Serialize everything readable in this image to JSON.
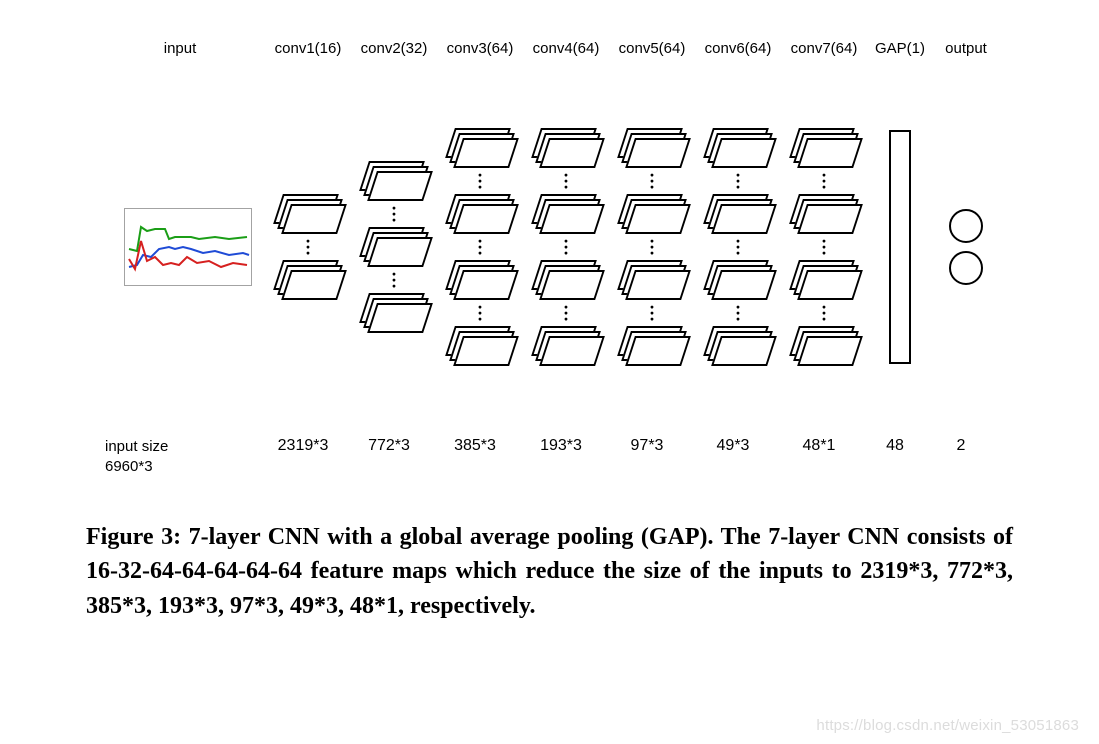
{
  "diagram": {
    "columns": [
      {
        "id": "input",
        "header": "input",
        "repr": "thumb",
        "stacks": 0,
        "size": "6960*3"
      },
      {
        "id": "conv1",
        "header": "conv1(16)",
        "repr": "fm",
        "stacks": 2,
        "size": "2319*3"
      },
      {
        "id": "conv2",
        "header": "conv2(32)",
        "repr": "fm",
        "stacks": 3,
        "size": "772*3"
      },
      {
        "id": "conv3",
        "header": "conv3(64)",
        "repr": "fm",
        "stacks": 4,
        "size": "385*3"
      },
      {
        "id": "conv4",
        "header": "conv4(64)",
        "repr": "fm",
        "stacks": 4,
        "size": "193*3"
      },
      {
        "id": "conv5",
        "header": "conv5(64)",
        "repr": "fm",
        "stacks": 4,
        "size": "97*3"
      },
      {
        "id": "conv6",
        "header": "conv6(64)",
        "repr": "fm",
        "stacks": 4,
        "size": "49*3"
      },
      {
        "id": "conv7",
        "header": "conv7(64)",
        "repr": "fm",
        "stacks": 4,
        "size": "48*1"
      },
      {
        "id": "gap",
        "header": "GAP(1)",
        "repr": "rect",
        "stacks": 0,
        "size": "48"
      },
      {
        "id": "output",
        "header": "output",
        "repr": "circles",
        "stacks": 0,
        "size": "2"
      }
    ],
    "input_size_label": "input size",
    "stack_layer_count": 3,
    "colors": {
      "stroke": "#000000",
      "background": "#ffffff",
      "thumb_border": "#a3a3a3",
      "signal_green": "#1b9e17",
      "signal_blue": "#1f4bd6",
      "signal_red": "#d6201f"
    }
  },
  "caption": {
    "label": "Figure 3:",
    "text": "7-layer CNN with a global average pooling (GAP). The 7-layer CNN consists of 16-32-64-64-64-64-64 feature maps which reduce the size of the inputs to 2319*3, 772*3, 385*3, 193*3, 97*3, 49*3, 48*1, respectively.",
    "fontsize_pt": 18
  },
  "watermark": "https://blog.csdn.net/weixin_53051863"
}
